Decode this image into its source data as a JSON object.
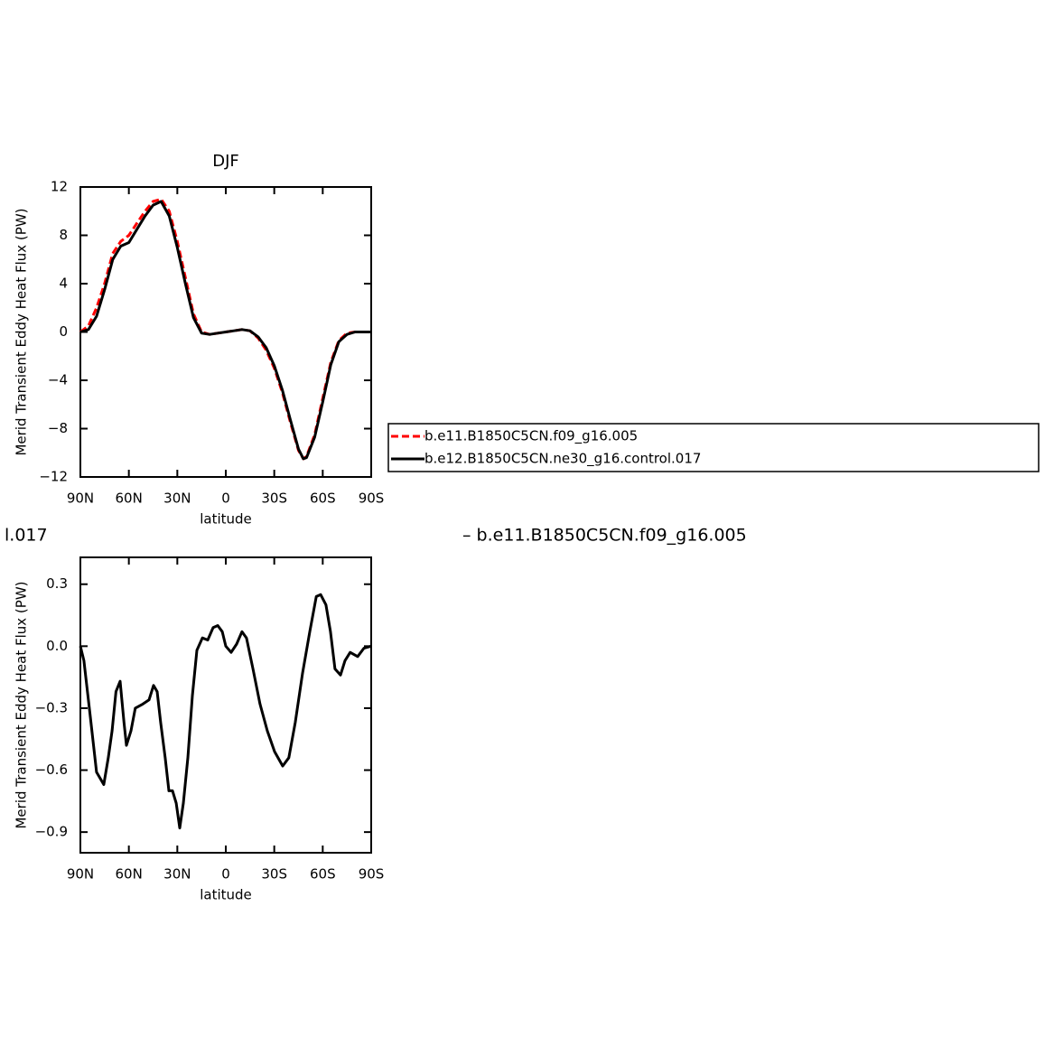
{
  "chart_data": [
    {
      "type": "line",
      "title": "DJF",
      "xlabel": "latitude",
      "ylabel": "Merid Transient Eddy Heat Flux (PW)",
      "x": [
        90,
        85,
        80,
        75,
        70,
        65,
        60,
        55,
        50,
        45,
        40,
        35,
        30,
        25,
        20,
        15,
        10,
        5,
        0,
        -5,
        -10,
        -15,
        -20,
        -25,
        -30,
        -35,
        -40,
        -45,
        -48,
        -50,
        -55,
        -60,
        -65,
        -70,
        -75,
        -80,
        -85,
        -90
      ],
      "series": [
        {
          "name": "b.e11.B1850C5CN.f09_g16.005",
          "color": "#ff0000",
          "linestyle": "dashed",
          "values": [
            0,
            0.5,
            2,
            4,
            6.5,
            7.5,
            8,
            9,
            10,
            10.8,
            11,
            10,
            7.5,
            4.5,
            1.5,
            0,
            -0.2,
            -0.1,
            0,
            0.1,
            0.2,
            0.1,
            -0.5,
            -1.5,
            -3,
            -5,
            -7.5,
            -9.8,
            -10.5,
            -10.3,
            -8.5,
            -5.5,
            -2.5,
            -0.7,
            -0.1,
            0,
            0,
            0
          ]
        },
        {
          "name": "b.e12.B1850C5CN.ne30_g16.control.017",
          "color": "#000000",
          "linestyle": "solid",
          "values": [
            0,
            0.2,
            1.3,
            3.5,
            6,
            7.1,
            7.4,
            8.5,
            9.6,
            10.5,
            10.8,
            9.6,
            7,
            4,
            1.2,
            -0.1,
            -0.2,
            -0.1,
            0,
            0.1,
            0.2,
            0.1,
            -0.4,
            -1.3,
            -2.8,
            -4.8,
            -7.3,
            -9.7,
            -10.5,
            -10.4,
            -8.7,
            -5.8,
            -2.7,
            -0.8,
            -0.2,
            0,
            0,
            0
          ]
        }
      ],
      "xlim": [
        90,
        -90
      ],
      "xticks": [
        {
          "value": 90,
          "label": "90N"
        },
        {
          "value": 60,
          "label": "60N"
        },
        {
          "value": 30,
          "label": "30N"
        },
        0,
        {
          "value": -30,
          "label": "30S"
        },
        {
          "value": -60,
          "label": "60S"
        },
        {
          "value": -90,
          "label": "90S"
        }
      ],
      "ylim": [
        -12,
        12
      ],
      "yticks": [
        {
          "value": -12,
          "label": "−12"
        },
        {
          "value": -8,
          "label": "−8"
        },
        {
          "value": -4,
          "label": "−4"
        },
        0,
        4,
        8,
        12
      ],
      "legend": "right"
    },
    {
      "type": "line",
      "annotations": [
        "l.017",
        "– b.e11.B1850C5CN.f09_g16.005"
      ],
      "xlabel": "latitude",
      "ylabel": "Merid Transient Eddy Heat Flux (PW)",
      "x": [
        90,
        87.8,
        84,
        80,
        75.5,
        72.7,
        70.4,
        68,
        65.4,
        63,
        61.5,
        58.7,
        56,
        51.4,
        47.5,
        44.7,
        42.5,
        40.3,
        37.5,
        35.2,
        33,
        30.7,
        28.5,
        26.3,
        23.5,
        20.7,
        17.9,
        14.5,
        11.2,
        7.8,
        5,
        2.2,
        0,
        -3.3,
        -6.7,
        -10,
        -12.8,
        -16.8,
        -21.2,
        -25.7,
        -30.2,
        -35.2,
        -39,
        -43,
        -47.5,
        -52,
        -56,
        -58.7,
        -62,
        -64.8,
        -67.6,
        -71,
        -73.8,
        -77,
        -81.6,
        -85.5,
        -90
      ],
      "series": [
        {
          "color": "#000000",
          "linestyle": "solid",
          "values": [
            0,
            -0.07,
            -0.33,
            -0.61,
            -0.67,
            -0.54,
            -0.41,
            -0.22,
            -0.17,
            -0.37,
            -0.48,
            -0.41,
            -0.3,
            -0.28,
            -0.26,
            -0.19,
            -0.22,
            -0.37,
            -0.54,
            -0.7,
            -0.7,
            -0.76,
            -0.88,
            -0.76,
            -0.54,
            -0.24,
            -0.02,
            0.04,
            0.03,
            0.09,
            0.1,
            0.07,
            0,
            -0.03,
            0.01,
            0.07,
            0.04,
            -0.11,
            -0.28,
            -0.41,
            -0.51,
            -0.58,
            -0.54,
            -0.37,
            -0.13,
            0.07,
            0.24,
            0.25,
            0.2,
            0.07,
            -0.11,
            -0.14,
            -0.07,
            -0.03,
            -0.05,
            -0.01,
            0
          ]
        }
      ],
      "xlim": [
        90,
        -90
      ],
      "xticks": [
        {
          "value": 90,
          "label": "90N"
        },
        {
          "value": 60,
          "label": "60N"
        },
        {
          "value": 30,
          "label": "30N"
        },
        0,
        {
          "value": -30,
          "label": "30S"
        },
        {
          "value": -60,
          "label": "60S"
        },
        {
          "value": -90,
          "label": "90S"
        }
      ],
      "ylim": [
        -1.0,
        0.43
      ],
      "yticks": [
        {
          "value": -0.9,
          "label": "−0.9"
        },
        {
          "value": -0.6,
          "label": "−0.6"
        },
        {
          "value": -0.3,
          "label": "−0.3"
        },
        {
          "value": 0,
          "label": "0.0"
        },
        0.3
      ]
    }
  ]
}
